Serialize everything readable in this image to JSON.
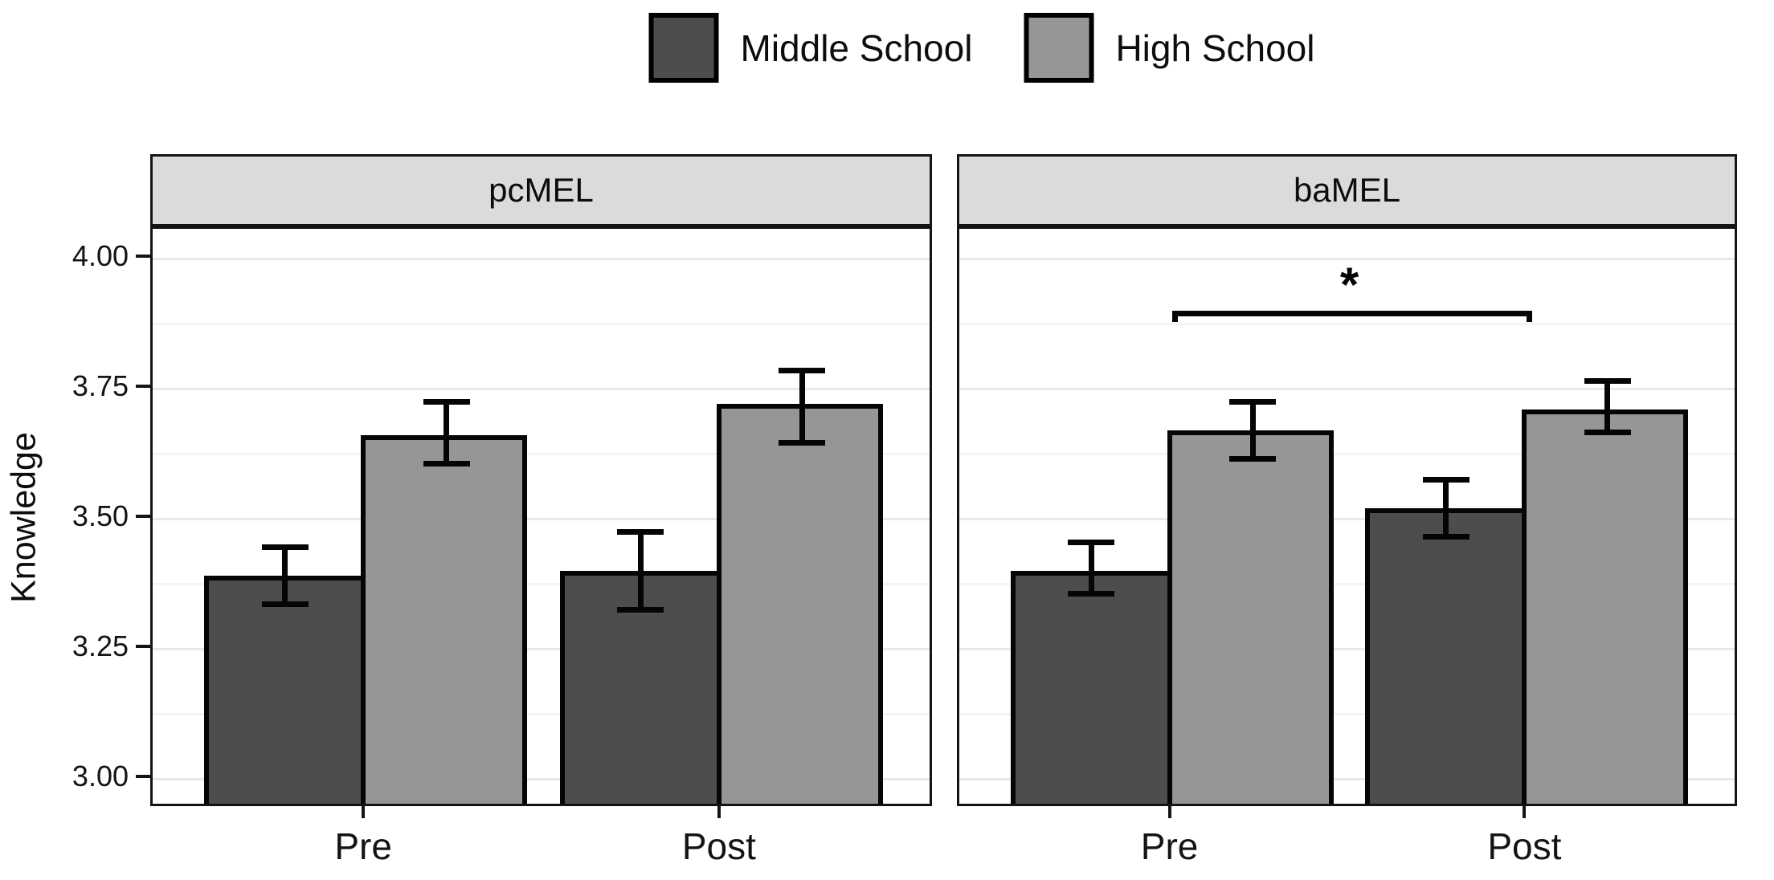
{
  "legend": {
    "items": [
      {
        "label": "Middle School",
        "color": "#4d4d4d"
      },
      {
        "label": "High School",
        "color": "#969696"
      }
    ]
  },
  "chart_data": {
    "type": "bar",
    "title": "",
    "xlabel": "",
    "ylabel": "Knowledge",
    "categories": [
      "Pre",
      "Post"
    ],
    "series_names": [
      "Middle School",
      "High School"
    ],
    "bar_colors": {
      "Middle School": "#4d4d4d",
      "High School": "#969696"
    },
    "facets": [
      {
        "name": "pcMEL",
        "series": [
          {
            "name": "Middle School",
            "values": [
              3.39,
              3.4
            ],
            "ci_low": [
              3.33,
              3.32
            ],
            "ci_high": [
              3.45,
              3.48
            ]
          },
          {
            "name": "High School",
            "values": [
              3.66,
              3.72
            ],
            "ci_low": [
              3.6,
              3.64
            ],
            "ci_high": [
              3.73,
              3.79
            ]
          }
        ]
      },
      {
        "name": "baMEL",
        "series": [
          {
            "name": "Middle School",
            "values": [
              3.4,
              3.52
            ],
            "ci_low": [
              3.35,
              3.46
            ],
            "ci_high": [
              3.46,
              3.58
            ]
          },
          {
            "name": "High School",
            "values": [
              3.67,
              3.71
            ],
            "ci_low": [
              3.61,
              3.66
            ],
            "ci_high": [
              3.73,
              3.77
            ]
          }
        ],
        "annotation": {
          "type": "significance-bracket",
          "label": "*",
          "from_category": "Pre",
          "to_category": "Post",
          "y": 3.9
        }
      }
    ],
    "y_ticks": [
      3.0,
      3.25,
      3.5,
      3.75,
      4.0
    ],
    "y_tick_labels": [
      "3.00",
      "3.25",
      "3.50",
      "3.75",
      "4.00"
    ],
    "y_minor_ticks": [
      3.125,
      3.375,
      3.625,
      3.875
    ],
    "ylim": [
      2.943,
      4.057
    ],
    "grid": true,
    "legend_position": "top"
  }
}
